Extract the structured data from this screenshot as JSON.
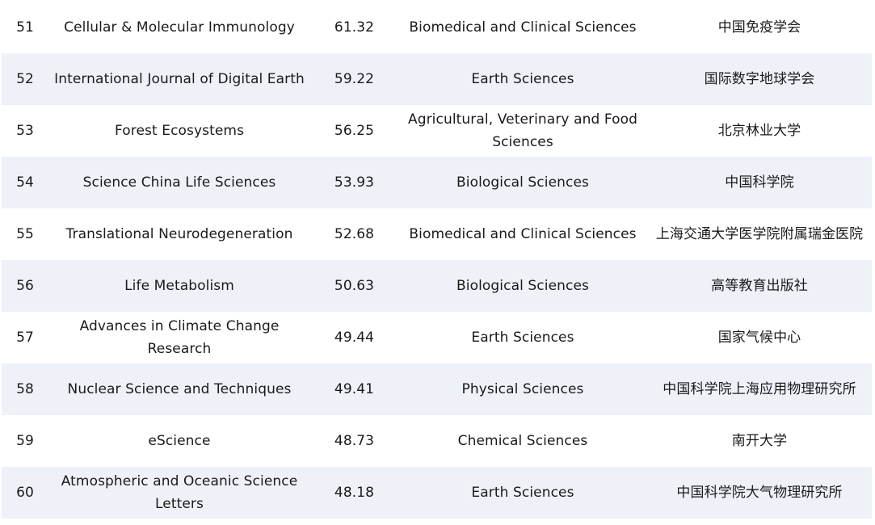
{
  "rows": [
    {
      "rank": "51",
      "journal": "Cellular & Molecular Immunology",
      "score": "61.32",
      "field": "Biomedical and Clinical Sciences",
      "publisher": "中国免疫学会"
    },
    {
      "rank": "52",
      "journal": "International Journal of Digital Earth",
      "score": "59.22",
      "field": "Earth Sciences",
      "publisher": "国际数字地球学会"
    },
    {
      "rank": "53",
      "journal": "Forest Ecosystems",
      "score": "56.25",
      "field": "Agricultural, Veterinary and Food Sciences",
      "publisher": "北京林业大学"
    },
    {
      "rank": "54",
      "journal": "Science China Life Sciences",
      "score": "53.93",
      "field": "Biological Sciences",
      "publisher": "中国科学院"
    },
    {
      "rank": "55",
      "journal": "Translational Neurodegeneration",
      "score": "52.68",
      "field": "Biomedical and Clinical Sciences",
      "publisher": "上海交通大学医学院附属瑞金医院"
    },
    {
      "rank": "56",
      "journal": "Life Metabolism",
      "score": "50.63",
      "field": "Biological Sciences",
      "publisher": "高等教育出版社"
    },
    {
      "rank": "57",
      "journal": "Advances in Climate Change Research",
      "score": "49.44",
      "field": "Earth Sciences",
      "publisher": "国家气候中心"
    },
    {
      "rank": "58",
      "journal": "Nuclear Science and Techniques",
      "score": "49.41",
      "field": "Physical Sciences",
      "publisher": "中国科学院上海应用物理研究所"
    },
    {
      "rank": "59",
      "journal": "eScience",
      "score": "48.73",
      "field": "Chemical Sciences",
      "publisher": "南开大学"
    },
    {
      "rank": "60",
      "journal": "Atmospheric and Oceanic Science Letters",
      "score": "48.18",
      "field": "Earth Sciences",
      "publisher": "中国科学院大气物理研究所"
    }
  ],
  "colors": {
    "row_stripe": "#eef1f8",
    "row_plain": "#ffffff",
    "text": "#1a1a1a"
  }
}
